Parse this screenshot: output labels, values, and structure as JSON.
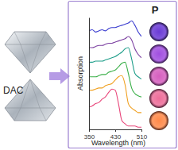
{
  "chart_data": {
    "type": "line",
    "x_label": "Wavelength (nm)",
    "y_label": "Absorption",
    "annotations": [
      "DAC",
      "P"
    ],
    "x": [
      350,
      360,
      370,
      380,
      390,
      400,
      410,
      420,
      430,
      440,
      450,
      460,
      470,
      480,
      490,
      500,
      510
    ],
    "xlim": [
      350,
      510
    ],
    "xticks": [
      350,
      430,
      510
    ],
    "ylim": [
      0,
      100
    ],
    "tick_labels": "x",
    "grid": false,
    "series": [
      {
        "color": "#3a3ccf",
        "values": [
          88,
          89,
          87,
          88,
          89,
          88,
          90,
          91,
          91,
          92,
          93,
          94,
          95,
          97,
          93,
          87,
          83
        ]
      },
      {
        "color": "#7b3fa0",
        "values": [
          73,
          73,
          74,
          75,
          75,
          76,
          77,
          77,
          78,
          79,
          80,
          81,
          83,
          80,
          72,
          67,
          64
        ]
      },
      {
        "color": "#1f9e8a",
        "values": [
          60,
          60,
          61,
          61,
          61,
          62,
          63,
          64,
          65,
          67,
          69,
          72,
          73,
          63,
          50,
          47,
          45
        ]
      },
      {
        "color": "#3cb04a",
        "values": [
          47,
          47,
          47,
          48,
          49,
          49,
          51,
          52,
          53,
          56,
          59,
          60,
          50,
          37,
          32,
          30,
          29
        ]
      },
      {
        "color": "#f0a020",
        "values": [
          35,
          35,
          36,
          37,
          37,
          39,
          40,
          41,
          44,
          47,
          48,
          40,
          23,
          19,
          17,
          15,
          15
        ]
      },
      {
        "color": "#e8457a",
        "values": [
          20,
          21,
          23,
          24,
          27,
          29,
          33,
          36,
          35,
          23,
          8,
          5,
          3,
          3,
          3,
          2,
          2
        ]
      }
    ]
  }
}
